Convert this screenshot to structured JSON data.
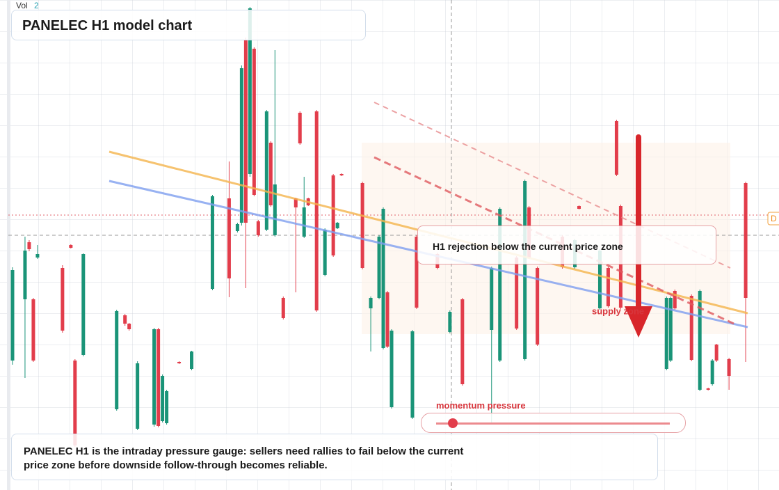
{
  "chart_data": {
    "type": "candlestick",
    "title": "PANELEC H1 model chart",
    "volume_label": "Vol",
    "volume_value": "2",
    "callout": "H1 rejection below the current price zone",
    "zone_label": "supply zone",
    "gauge_label": "momentum pressure",
    "description": "PANELEC H1 is the intraday pressure gauge: sellers need rallies to fail below the current price zone before downside follow-through becomes reliable.",
    "price_tag": "D",
    "up_color": "#1a9478",
    "down_color": "#e23d4b",
    "xlim": [
      -1,
      184
    ],
    "ylim": [
      0,
      70.4
    ],
    "x": [
      0,
      3,
      4,
      5,
      6,
      12,
      14,
      15,
      17,
      25,
      27,
      28,
      30,
      34,
      35,
      36,
      37,
      40,
      43,
      48,
      52,
      54,
      55,
      56,
      57,
      58,
      59,
      61,
      62,
      63,
      65,
      68,
      69,
      70,
      71,
      73,
      75,
      77,
      78,
      79,
      84,
      86,
      88,
      89,
      90,
      91,
      96,
      97,
      102,
      105,
      108,
      115,
      117,
      121,
      123,
      124,
      126,
      132,
      135,
      136,
      141,
      143,
      145,
      146,
      157,
      158,
      159,
      163,
      165,
      167,
      168,
      169,
      172,
      176
    ],
    "open": [
      18.6,
      27.4,
      35.6,
      27.4,
      33.4,
      31.9,
      35.2,
      18.6,
      19.4,
      11.6,
      25.1,
      23.9,
      8.8,
      9.4,
      23.1,
      9.9,
      9.6,
      18.4,
      17.4,
      28.9,
      41.9,
      37.2,
      38.4,
      64.6,
      45.4,
      63.4,
      38.6,
      37.4,
      49.9,
      36.6,
      27.6,
      41.9,
      54.2,
      36.4,
      41.9,
      54.4,
      30.9,
      45.2,
      37.6,
      45.4,
      44.1,
      26.1,
      27.6,
      20.4,
      28.4,
      11.9,
      10.4,
      36.4,
      33.9,
      22.7,
      27.4,
      23.0,
      18.6,
      33.4,
      18.8,
      40.6,
      31.9,
      36.4,
      32.0,
      40.8,
      26.1,
      31.9,
      53.0,
      40.8,
      17.4,
      18.6,
      28.6,
      27.9,
      14.4,
      14.6,
      15.2,
      20.9,
      18.8,
      44.1
    ],
    "high": [
      32.0,
      36.4,
      35.9,
      27.6,
      35.2,
      32.3,
      35.3,
      18.8,
      34.0,
      25.9,
      25.3,
      24.0,
      18.5,
      23.3,
      23.3,
      16.6,
      14.4,
      18.5,
      20.0,
      42.4,
      47.2,
      38.4,
      61.0,
      65.0,
      69.4,
      63.6,
      38.8,
      54.6,
      50.1,
      63.2,
      27.8,
      42.0,
      54.4,
      45.0,
      42.0,
      54.6,
      37.6,
      45.4,
      38.5,
      45.5,
      44.3,
      27.8,
      36.6,
      40.6,
      28.6,
      23.1,
      23.0,
      36.6,
      34.1,
      25.8,
      27.6,
      32.1,
      40.6,
      33.6,
      44.6,
      40.8,
      32.1,
      36.6,
      36.1,
      40.9,
      34.6,
      32.1,
      53.2,
      41.0,
      27.8,
      27.8,
      28.8,
      28.1,
      28.8,
      14.7,
      18.8,
      21.0,
      19.0,
      44.3
    ],
    "low": [
      18.0,
      16.1,
      34.3,
      18.4,
      33.2,
      22.6,
      34.7,
      6.2,
      19.2,
      11.4,
      23.6,
      22.9,
      8.6,
      9.1,
      9.0,
      9.7,
      9.4,
      18.1,
      17.2,
      28.7,
      27.7,
      37.0,
      38.0,
      29.0,
      45.0,
      42.2,
      36.4,
      37.2,
      40.7,
      36.4,
      24.5,
      28.4,
      49.6,
      36.2,
      40.8,
      25.6,
      30.7,
      33.5,
      37.5,
      45.1,
      31.7,
      19.9,
      27.4,
      20.2,
      20.4,
      11.7,
      10.2,
      26.0,
      31.7,
      22.5,
      15.0,
      9.4,
      18.4,
      23.0,
      18.6,
      33.2,
      20.7,
      31.8,
      31.8,
      40.3,
      25.9,
      26.2,
      45.1,
      26.0,
      17.2,
      18.4,
      25.9,
      18.5,
      14.2,
      14.3,
      15.0,
      18.4,
      14.4,
      18.4
    ],
    "close": [
      31.6,
      34.4,
      34.6,
      18.6,
      33.9,
      22.9,
      34.8,
      6.4,
      33.9,
      25.7,
      23.9,
      23.1,
      18.2,
      23.1,
      9.2,
      16.4,
      14.2,
      18.2,
      19.9,
      42.2,
      30.4,
      38.2,
      60.6,
      38.4,
      69.2,
      42.4,
      36.6,
      54.4,
      40.9,
      43.9,
      24.7,
      40.6,
      49.8,
      40.6,
      40.9,
      25.8,
      37.4,
      33.7,
      38.4,
      45.2,
      31.9,
      27.6,
      36.4,
      40.4,
      20.6,
      22.9,
      22.8,
      26.2,
      31.9,
      25.6,
      15.2,
      31.9,
      40.4,
      23.2,
      44.4,
      33.4,
      20.9,
      32.0,
      35.9,
      40.4,
      34.4,
      26.4,
      45.3,
      26.2,
      27.6,
      27.6,
      26.1,
      18.7,
      28.6,
      14.4,
      18.6,
      18.6,
      16.4,
      27.6
    ]
  }
}
